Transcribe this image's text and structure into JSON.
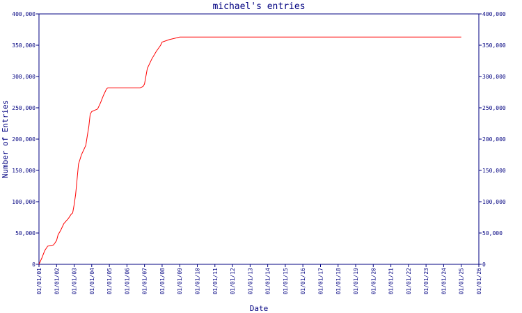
{
  "chart_data": {
    "type": "line",
    "title": "michael's entries",
    "xlabel": "Date",
    "ylabel": "Number of Entries",
    "ylim": [
      0,
      400000
    ],
    "y_ticks": [
      0,
      50000,
      100000,
      150000,
      200000,
      250000,
      300000,
      350000,
      400000
    ],
    "y_tick_labels": [
      "0",
      "50,000",
      "100,000",
      "150,000",
      "200,000",
      "250,000",
      "300,000",
      "350,000",
      "400,000"
    ],
    "x_tick_labels": [
      "01/01/01",
      "01/01/02",
      "01/01/03",
      "01/01/04",
      "01/01/05",
      "01/01/06",
      "01/01/07",
      "01/01/08",
      "01/01/09",
      "01/01/10",
      "01/01/11",
      "01/01/12",
      "01/01/13",
      "01/01/14",
      "01/01/15",
      "01/01/16",
      "01/01/17",
      "01/01/18",
      "01/01/19",
      "01/01/20",
      "01/01/21",
      "01/01/22",
      "01/01/23",
      "01/01/24",
      "01/01/25",
      "01/01/26"
    ],
    "grid": false,
    "colors": {
      "line": "#ff0000",
      "axes": "#000080",
      "text": "#000080",
      "background": "#ffffff"
    },
    "series": [
      {
        "x": [
          "01/01/01",
          "01/03/01",
          "01/05/01",
          "01/07/01",
          "01/09/01",
          "01/11/01",
          "01/01/02",
          "01/02/02",
          "01/04/02",
          "01/06/02",
          "01/09/02",
          "01/11/02",
          "01/12/02",
          "01/01/03",
          "01/02/03",
          "01/04/03",
          "01/06/03",
          "01/09/03",
          "01/10/03",
          "01/11/03",
          "01/12/03",
          "01/01/04",
          "01/03/04",
          "01/05/04",
          "01/07/04",
          "01/09/04",
          "01/11/04",
          "01/12/04",
          "01/01/05",
          "01/02/05",
          "01/06/05",
          "01/01/06",
          "01/06/06",
          "01/10/06",
          "01/12/06",
          "01/01/07",
          "01/03/07",
          "01/06/07",
          "01/09/07",
          "01/12/07",
          "01/01/08",
          "01/06/08",
          "01/01/09",
          "01/01/10",
          "01/01/15",
          "01/01/20",
          "01/01/25"
        ],
        "y": [
          0,
          10000,
          22000,
          29000,
          30000,
          31000,
          38000,
          47000,
          55000,
          65000,
          73000,
          80000,
          82000,
          95000,
          112000,
          160000,
          175000,
          190000,
          205000,
          220000,
          240000,
          244000,
          246000,
          248000,
          258000,
          270000,
          280000,
          282000,
          282000,
          282000,
          282000,
          282000,
          282000,
          282000,
          284000,
          288000,
          313000,
          328000,
          340000,
          350000,
          355000,
          359000,
          363000,
          363000,
          363000,
          363000,
          363000
        ]
      }
    ]
  }
}
